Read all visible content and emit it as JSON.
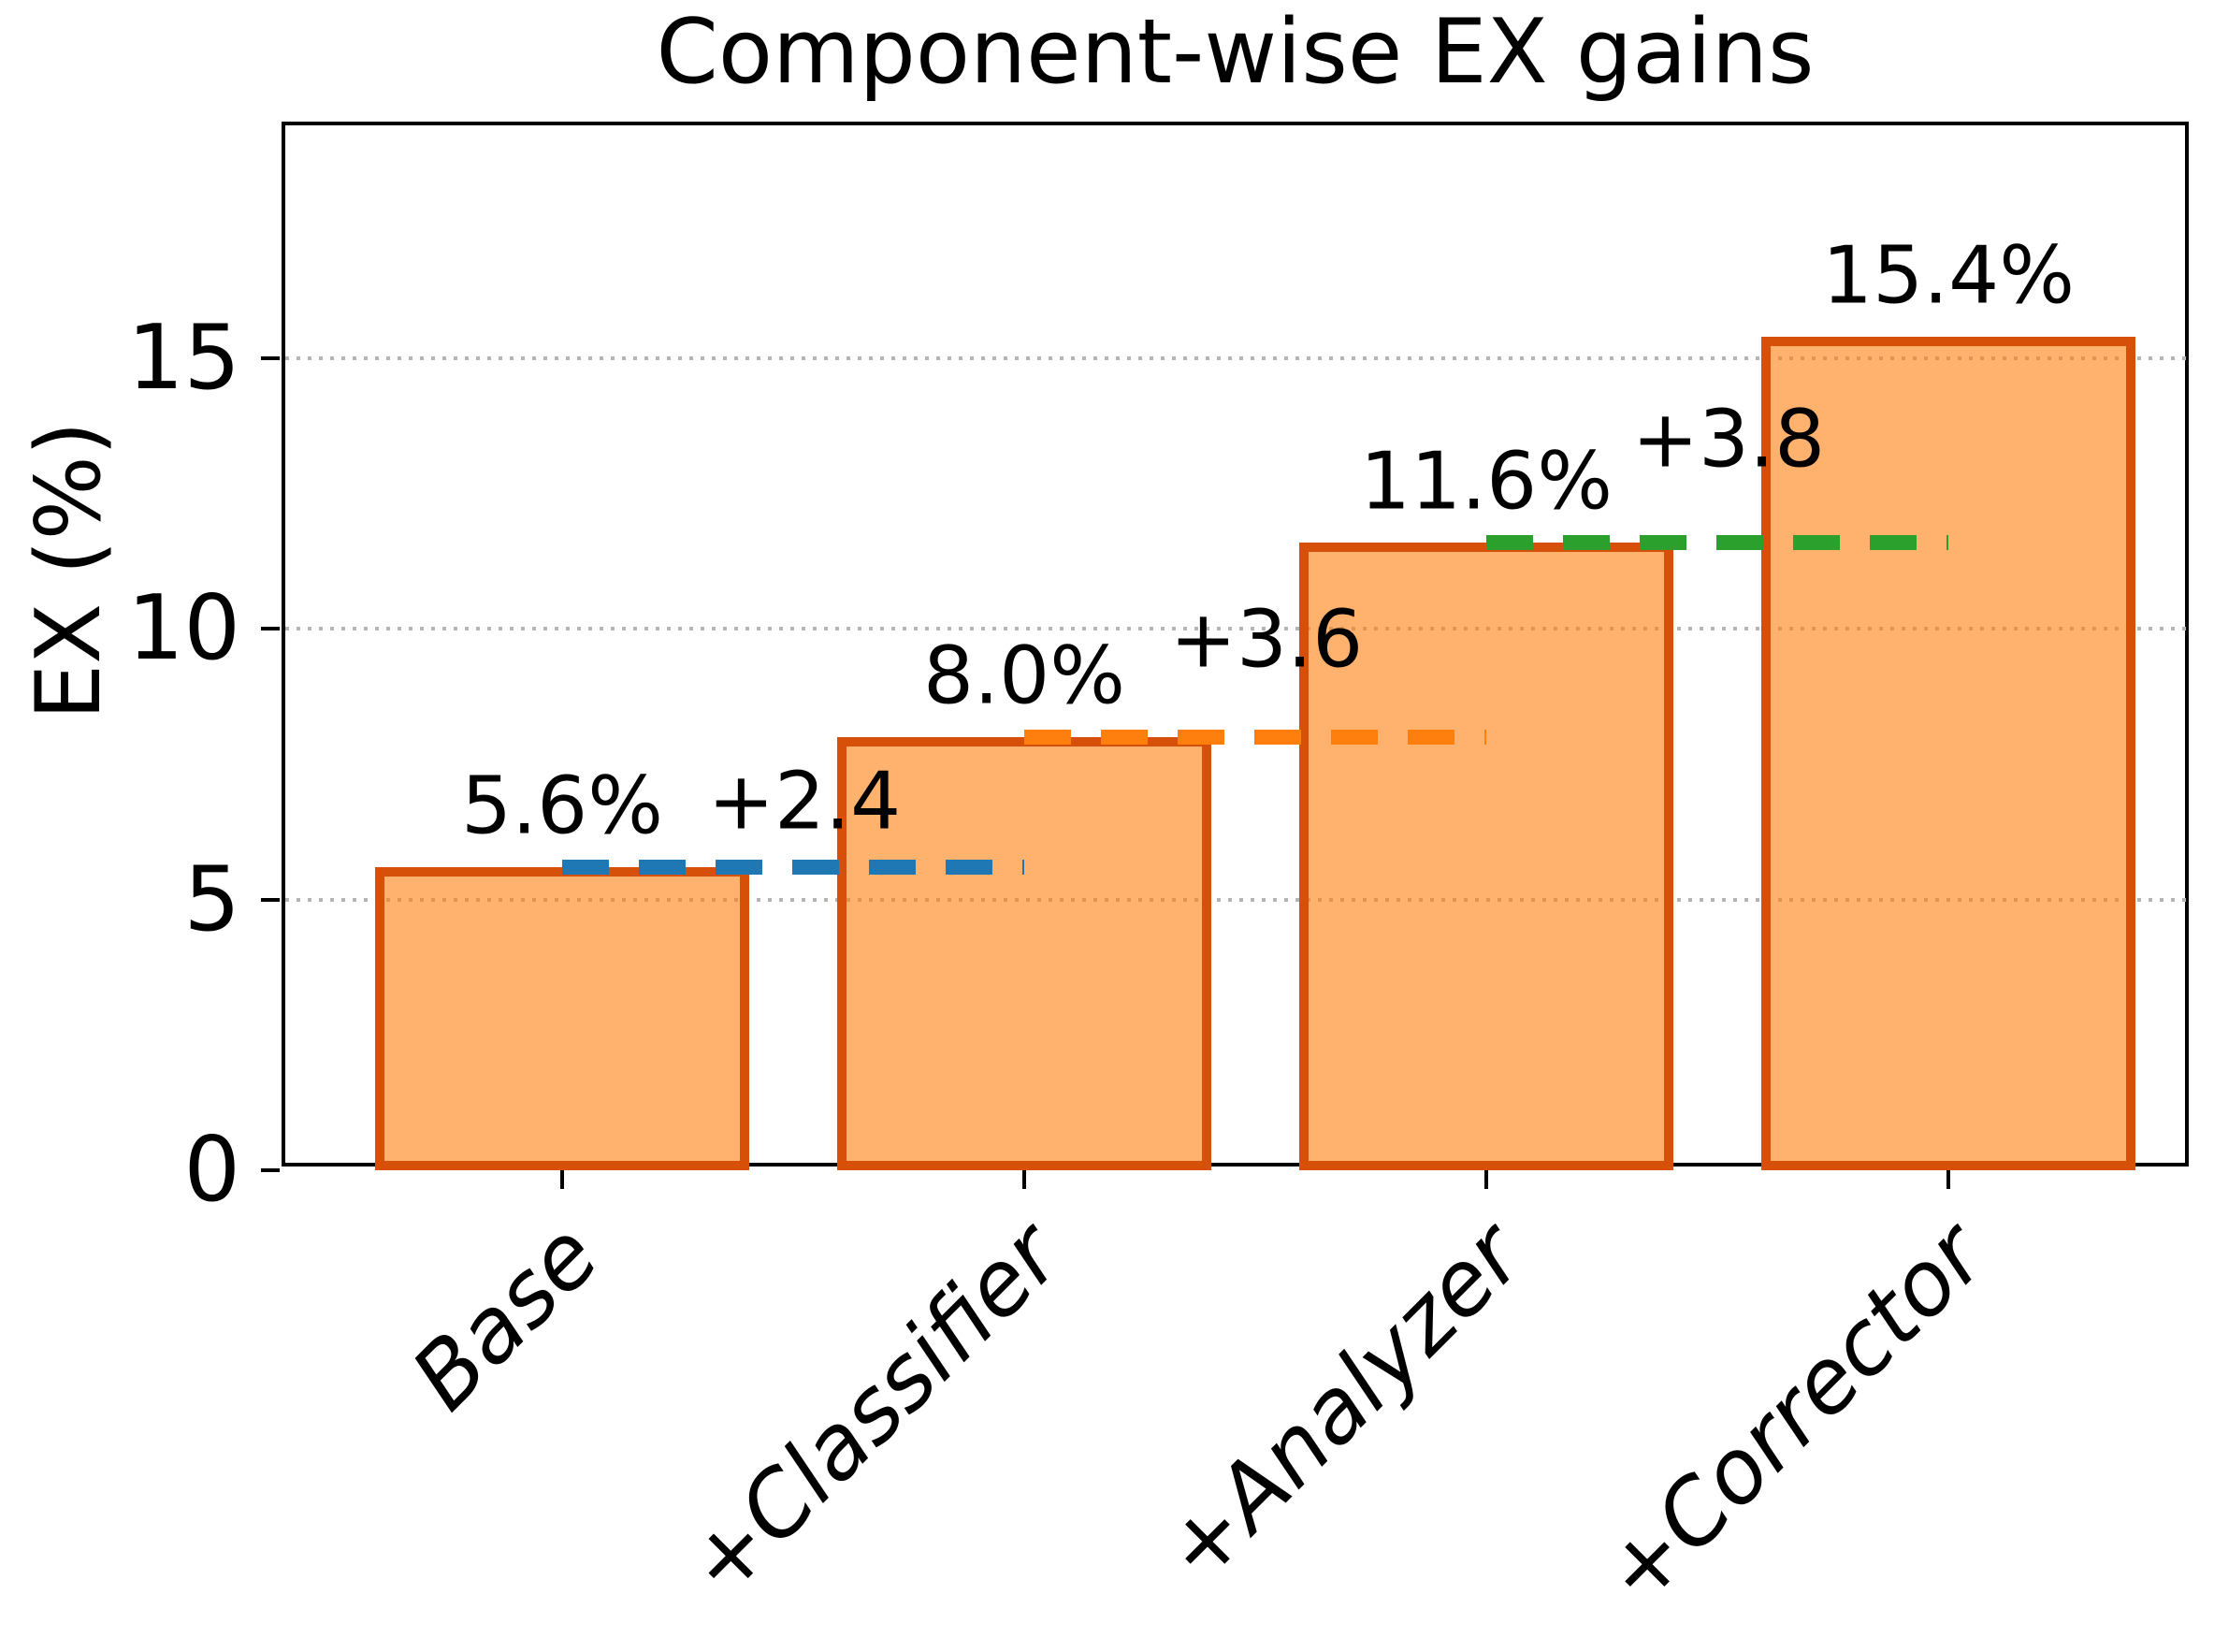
{
  "chart_data": {
    "type": "bar",
    "title": "Component-wise EX gains",
    "ylabel": "EX (%)",
    "categories": [
      "Base",
      "+Classifier",
      "+Analyzer",
      "+Corrector"
    ],
    "values": [
      5.6,
      8.0,
      11.6,
      15.4
    ],
    "bar_labels": [
      "5.6%",
      "8.0%",
      "11.6%",
      "15.4%"
    ],
    "gains": [
      {
        "label": "+2.4",
        "from": "Base",
        "to": "+Classifier",
        "level": 5.6,
        "color": "#1f77b4"
      },
      {
        "label": "+3.6",
        "from": "+Classifier",
        "to": "+Analyzer",
        "level": 8.0,
        "color": "#ff7f0e"
      },
      {
        "label": "+3.8",
        "from": "+Analyzer",
        "to": "+Corrector",
        "level": 11.6,
        "color": "#2ca02c"
      }
    ],
    "yticks": [
      0,
      5,
      10,
      15
    ],
    "ylim": [
      0,
      19.3
    ],
    "grid": {
      "axis": "y",
      "style": "dotted",
      "color": "#b5b5b5"
    },
    "bar_style": {
      "fill": "#ff7f0e",
      "fill_alpha": 0.6,
      "edge": "#d6500a"
    },
    "legend_position": "none"
  }
}
